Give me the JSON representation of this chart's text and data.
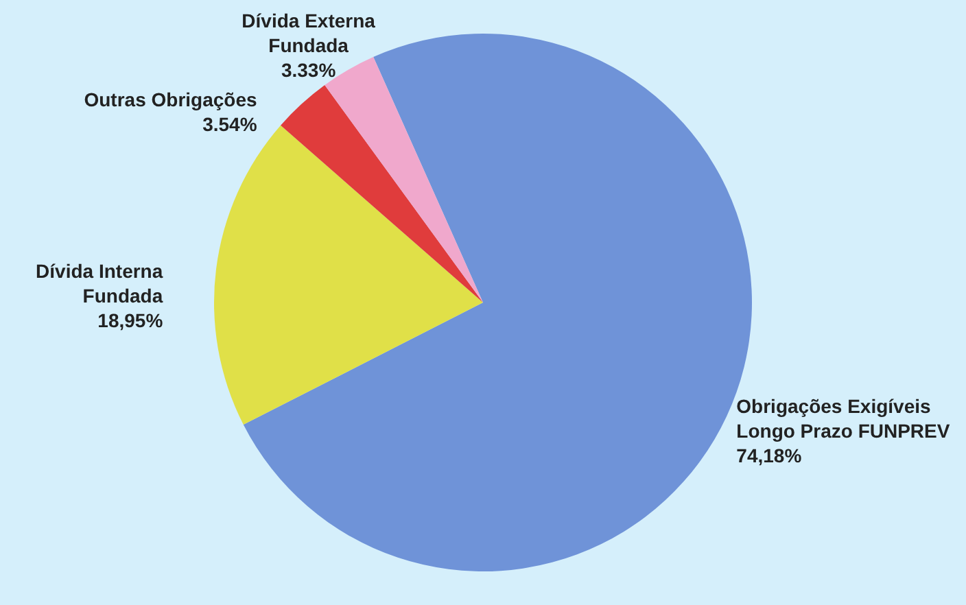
{
  "chart_data": {
    "type": "pie",
    "categories": [
      "Obrigações Exigíveis Longo Prazo FUNPREV",
      "Dívida Interna Fundada",
      "Outras Obrigações",
      "Dívida Externa Fundada"
    ],
    "values": [
      74.18,
      18.95,
      3.54,
      3.33
    ],
    "value_labels": [
      "74,18%",
      "18,95%",
      "3.54%",
      "3.33%"
    ],
    "colors": [
      "#6f93d8",
      "#e0e048",
      "#e03c3c",
      "#f0a8cc"
    ],
    "legend": false
  }
}
